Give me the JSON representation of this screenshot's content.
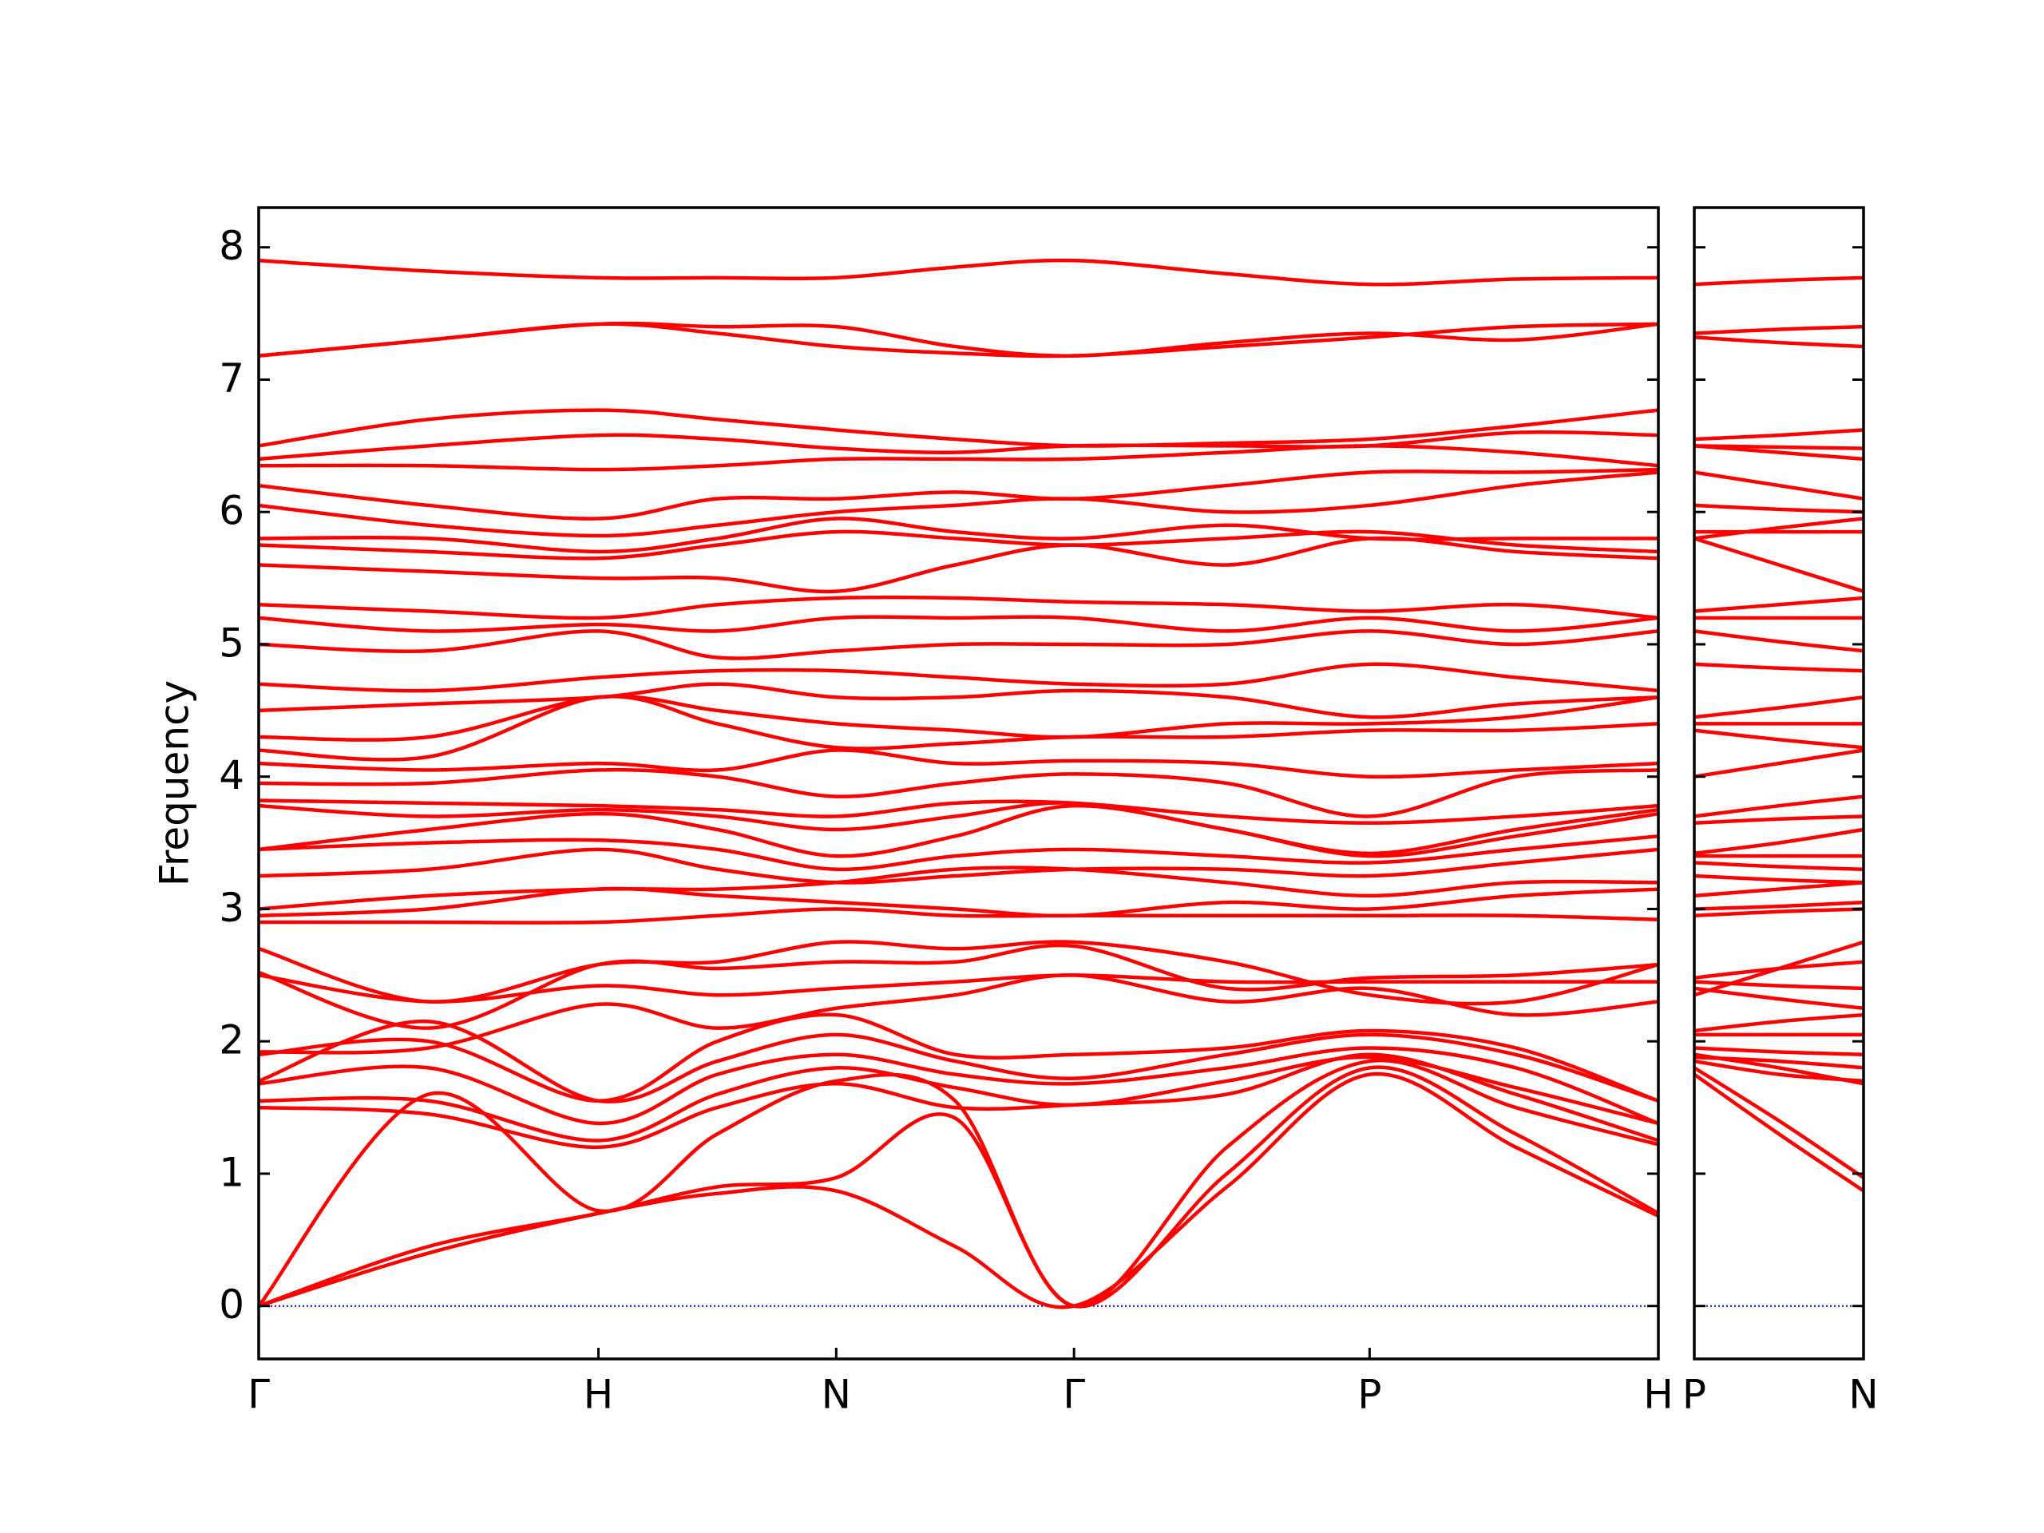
{
  "chart_data": [
    {
      "type": "line",
      "ylabel": "Frequency",
      "color": "#ff0000",
      "hline": 0,
      "hline_color": "#0000ff",
      "x": [
        0,
        0.5,
        1,
        1.35,
        1.7,
        2.05,
        2.4,
        2.85,
        3.27,
        3.7,
        4.12
      ],
      "xlim": [
        0,
        4.12
      ],
      "xticks": [
        {
          "value": 0,
          "label": "Γ"
        },
        {
          "value": 1,
          "label": "H"
        },
        {
          "value": 1.7,
          "label": "N"
        },
        {
          "value": 2.4,
          "label": "Γ"
        },
        {
          "value": 3.27,
          "label": "P"
        },
        {
          "value": 4.12,
          "label": "H"
        }
      ],
      "ylim": [
        -0.4,
        8.3
      ],
      "yticks": [
        0,
        1,
        2,
        3,
        4,
        5,
        6,
        7,
        8
      ],
      "series": [
        {
          "values": [
            0,
            0.4,
            0.7,
            0.85,
            0.87,
            0.45,
            0,
            0.9,
            1.75,
            1.2,
            0.68
          ]
        },
        {
          "values": [
            0,
            0.45,
            0.7,
            0.9,
            0.97,
            1.42,
            0,
            1.0,
            1.8,
            1.3,
            0.7
          ]
        },
        {
          "values": [
            0,
            1.6,
            0.72,
            1.3,
            1.7,
            1.55,
            0,
            1.2,
            1.85,
            1.5,
            1.22
          ]
        },
        {
          "values": [
            1.5,
            1.45,
            1.2,
            1.5,
            1.68,
            1.5,
            1.52,
            1.6,
            1.9,
            1.6,
            1.25
          ]
        },
        {
          "values": [
            1.55,
            1.55,
            1.25,
            1.6,
            1.8,
            1.65,
            1.52,
            1.7,
            1.88,
            1.65,
            1.38
          ]
        },
        {
          "values": [
            1.68,
            1.8,
            1.38,
            1.75,
            1.9,
            1.75,
            1.68,
            1.8,
            1.95,
            1.8,
            1.38
          ]
        },
        {
          "values": [
            1.7,
            2.15,
            1.55,
            1.85,
            2.05,
            1.85,
            1.72,
            1.9,
            2.05,
            1.9,
            1.55
          ]
        },
        {
          "values": [
            1.9,
            2.0,
            1.55,
            2.0,
            2.2,
            1.9,
            1.9,
            1.95,
            2.08,
            1.95,
            1.55
          ]
        },
        {
          "values": [
            1.92,
            1.95,
            2.28,
            2.1,
            2.25,
            2.35,
            2.5,
            2.3,
            2.4,
            2.2,
            2.3
          ]
        },
        {
          "values": [
            2.5,
            2.3,
            2.42,
            2.35,
            2.4,
            2.45,
            2.5,
            2.45,
            2.45,
            2.45,
            2.45
          ]
        },
        {
          "values": [
            2.52,
            2.1,
            2.58,
            2.55,
            2.6,
            2.6,
            2.72,
            2.4,
            2.48,
            2.5,
            2.58
          ]
        },
        {
          "values": [
            2.7,
            2.3,
            2.58,
            2.6,
            2.75,
            2.7,
            2.75,
            2.6,
            2.35,
            2.3,
            2.58
          ]
        },
        {
          "values": [
            2.9,
            2.9,
            2.9,
            2.95,
            3.0,
            2.95,
            2.95,
            2.95,
            2.95,
            2.95,
            2.92
          ]
        },
        {
          "values": [
            2.95,
            3.0,
            3.15,
            3.1,
            3.05,
            3.0,
            2.95,
            3.05,
            3.0,
            3.1,
            3.15
          ]
        },
        {
          "values": [
            3.0,
            3.1,
            3.15,
            3.15,
            3.2,
            3.3,
            3.3,
            3.2,
            3.1,
            3.2,
            3.2
          ]
        },
        {
          "values": [
            3.25,
            3.3,
            3.45,
            3.3,
            3.2,
            3.25,
            3.3,
            3.3,
            3.25,
            3.35,
            3.45
          ]
        },
        {
          "values": [
            3.45,
            3.5,
            3.52,
            3.45,
            3.3,
            3.4,
            3.45,
            3.4,
            3.35,
            3.45,
            3.55
          ]
        },
        {
          "values": [
            3.45,
            3.6,
            3.72,
            3.6,
            3.4,
            3.55,
            3.78,
            3.6,
            3.4,
            3.55,
            3.72
          ]
        },
        {
          "values": [
            3.78,
            3.7,
            3.75,
            3.7,
            3.6,
            3.7,
            3.8,
            3.6,
            3.42,
            3.6,
            3.75
          ]
        },
        {
          "values": [
            3.82,
            3.8,
            3.78,
            3.75,
            3.7,
            3.8,
            3.8,
            3.7,
            3.65,
            3.7,
            3.78
          ]
        },
        {
          "values": [
            3.95,
            3.95,
            4.05,
            4.0,
            3.85,
            3.95,
            4.02,
            3.95,
            3.7,
            4.0,
            4.05
          ]
        },
        {
          "values": [
            4.1,
            4.05,
            4.1,
            4.05,
            4.2,
            4.1,
            4.12,
            4.1,
            4.0,
            4.05,
            4.1
          ]
        },
        {
          "values": [
            4.2,
            4.15,
            4.6,
            4.4,
            4.22,
            4.25,
            4.3,
            4.3,
            4.35,
            4.35,
            4.4
          ]
        },
        {
          "values": [
            4.3,
            4.3,
            4.6,
            4.5,
            4.4,
            4.35,
            4.3,
            4.4,
            4.4,
            4.45,
            4.6
          ]
        },
        {
          "values": [
            4.5,
            4.55,
            4.6,
            4.7,
            4.6,
            4.6,
            4.65,
            4.6,
            4.45,
            4.55,
            4.6
          ]
        },
        {
          "values": [
            4.7,
            4.65,
            4.75,
            4.8,
            4.8,
            4.75,
            4.7,
            4.7,
            4.85,
            4.75,
            4.65
          ]
        },
        {
          "values": [
            5.0,
            4.95,
            5.1,
            4.9,
            4.95,
            5.0,
            5.0,
            5.0,
            5.1,
            5.0,
            5.1
          ]
        },
        {
          "values": [
            5.2,
            5.1,
            5.15,
            5.1,
            5.2,
            5.2,
            5.2,
            5.1,
            5.2,
            5.1,
            5.2
          ]
        },
        {
          "values": [
            5.3,
            5.25,
            5.2,
            5.3,
            5.35,
            5.35,
            5.32,
            5.3,
            5.25,
            5.3,
            5.2
          ]
        },
        {
          "values": [
            5.6,
            5.55,
            5.5,
            5.5,
            5.4,
            5.6,
            5.75,
            5.6,
            5.8,
            5.7,
            5.65
          ]
        },
        {
          "values": [
            5.75,
            5.7,
            5.65,
            5.75,
            5.85,
            5.8,
            5.75,
            5.8,
            5.85,
            5.75,
            5.7
          ]
        },
        {
          "values": [
            5.8,
            5.8,
            5.7,
            5.8,
            5.95,
            5.85,
            5.8,
            5.9,
            5.8,
            5.8,
            5.8
          ]
        },
        {
          "values": [
            6.05,
            5.9,
            5.82,
            5.9,
            6.0,
            6.05,
            6.1,
            6.0,
            6.05,
            6.2,
            6.3
          ]
        },
        {
          "values": [
            6.2,
            6.05,
            5.95,
            6.1,
            6.1,
            6.15,
            6.1,
            6.2,
            6.3,
            6.3,
            6.32
          ]
        },
        {
          "values": [
            6.35,
            6.35,
            6.32,
            6.35,
            6.4,
            6.4,
            6.4,
            6.45,
            6.5,
            6.45,
            6.35
          ]
        },
        {
          "values": [
            6.4,
            6.5,
            6.58,
            6.55,
            6.48,
            6.45,
            6.5,
            6.5,
            6.5,
            6.6,
            6.58
          ]
        },
        {
          "values": [
            6.5,
            6.7,
            6.77,
            6.7,
            6.62,
            6.55,
            6.5,
            6.52,
            6.55,
            6.65,
            6.77
          ]
        },
        {
          "values": [
            7.18,
            7.3,
            7.42,
            7.35,
            7.25,
            7.2,
            7.18,
            7.25,
            7.32,
            7.4,
            7.42
          ]
        },
        {
          "values": [
            7.18,
            7.3,
            7.42,
            7.4,
            7.4,
            7.25,
            7.18,
            7.28,
            7.35,
            7.3,
            7.42
          ]
        },
        {
          "values": [
            7.9,
            7.82,
            7.77,
            7.77,
            7.77,
            7.85,
            7.9,
            7.8,
            7.72,
            7.76,
            7.77
          ]
        }
      ]
    },
    {
      "type": "line",
      "color": "#ff0000",
      "hline": 0,
      "hline_color": "#0000ff",
      "x": [
        0,
        0.25,
        0.5
      ],
      "xlim": [
        0,
        0.5
      ],
      "xticks": [
        {
          "value": 0,
          "label": "P"
        },
        {
          "value": 0.5,
          "label": "N"
        }
      ],
      "ylim": [
        -0.4,
        8.3
      ],
      "yticks": [
        0,
        1,
        2,
        3,
        4,
        5,
        6,
        7,
        8
      ],
      "series": [
        {
          "values": [
            1.75,
            1.3,
            0.87
          ]
        },
        {
          "values": [
            1.8,
            1.4,
            0.97
          ]
        },
        {
          "values": [
            1.85,
            1.75,
            1.7
          ]
        },
        {
          "values": [
            1.9,
            1.8,
            1.68
          ]
        },
        {
          "values": [
            1.88,
            1.85,
            1.8
          ]
        },
        {
          "values": [
            1.95,
            1.92,
            1.9
          ]
        },
        {
          "values": [
            2.05,
            2.05,
            2.05
          ]
        },
        {
          "values": [
            2.08,
            2.15,
            2.2
          ]
        },
        {
          "values": [
            2.4,
            2.32,
            2.25
          ]
        },
        {
          "values": [
            2.45,
            2.42,
            2.4
          ]
        },
        {
          "values": [
            2.48,
            2.55,
            2.6
          ]
        },
        {
          "values": [
            2.35,
            2.55,
            2.75
          ]
        },
        {
          "values": [
            2.95,
            2.98,
            3.0
          ]
        },
        {
          "values": [
            3.0,
            3.02,
            3.05
          ]
        },
        {
          "values": [
            3.1,
            3.15,
            3.2
          ]
        },
        {
          "values": [
            3.25,
            3.22,
            3.2
          ]
        },
        {
          "values": [
            3.35,
            3.32,
            3.3
          ]
        },
        {
          "values": [
            3.4,
            3.4,
            3.4
          ]
        },
        {
          "values": [
            3.42,
            3.5,
            3.6
          ]
        },
        {
          "values": [
            3.65,
            3.68,
            3.7
          ]
        },
        {
          "values": [
            3.7,
            3.78,
            3.85
          ]
        },
        {
          "values": [
            4.0,
            4.1,
            4.2
          ]
        },
        {
          "values": [
            4.35,
            4.28,
            4.22
          ]
        },
        {
          "values": [
            4.4,
            4.4,
            4.4
          ]
        },
        {
          "values": [
            4.45,
            4.52,
            4.6
          ]
        },
        {
          "values": [
            4.85,
            4.82,
            4.8
          ]
        },
        {
          "values": [
            5.1,
            5.02,
            4.95
          ]
        },
        {
          "values": [
            5.2,
            5.2,
            5.2
          ]
        },
        {
          "values": [
            5.25,
            5.3,
            5.35
          ]
        },
        {
          "values": [
            5.8,
            5.6,
            5.4
          ]
        },
        {
          "values": [
            5.85,
            5.85,
            5.85
          ]
        },
        {
          "values": [
            5.8,
            5.88,
            5.95
          ]
        },
        {
          "values": [
            6.05,
            6.02,
            6.0
          ]
        },
        {
          "values": [
            6.3,
            6.2,
            6.1
          ]
        },
        {
          "values": [
            6.5,
            6.45,
            6.4
          ]
        },
        {
          "values": [
            6.5,
            6.49,
            6.48
          ]
        },
        {
          "values": [
            6.55,
            6.58,
            6.62
          ]
        },
        {
          "values": [
            7.32,
            7.28,
            7.25
          ]
        },
        {
          "values": [
            7.35,
            7.38,
            7.4
          ]
        },
        {
          "values": [
            7.72,
            7.75,
            7.77
          ]
        }
      ]
    }
  ]
}
